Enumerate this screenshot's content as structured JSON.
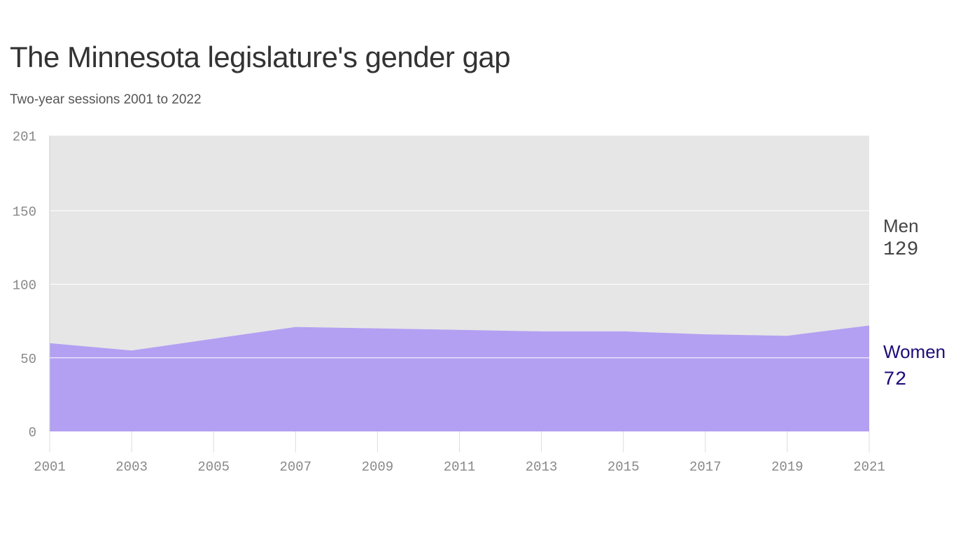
{
  "title": "The Minnesota legislature's gender gap",
  "subtitle": "Two-year sessions 2001 to 2022",
  "chart_data": {
    "type": "area",
    "stacked": true,
    "x": [
      2001,
      2003,
      2005,
      2007,
      2009,
      2011,
      2013,
      2015,
      2017,
      2019,
      2021
    ],
    "x_tick_labels": [
      "2001",
      "2003",
      "2005",
      "2007",
      "2009",
      "2011",
      "2013",
      "2015",
      "2017",
      "2019",
      "2021"
    ],
    "y_tick_labels": [
      "0",
      "50",
      "100",
      "150",
      "201"
    ],
    "y_ticks": [
      0,
      50,
      100,
      150,
      201
    ],
    "ylim": [
      0,
      201
    ],
    "grid": true,
    "series": [
      {
        "name": "Women",
        "values": [
          60,
          55,
          63,
          71,
          70,
          69,
          68,
          68,
          66,
          65,
          72
        ],
        "color": "#b3a0f2",
        "label_color": "#1e0b78",
        "last_label": "72"
      },
      {
        "name": "Men",
        "values": [
          141,
          146,
          138,
          130,
          131,
          132,
          133,
          133,
          135,
          136,
          129
        ],
        "color": "#e6e6e6",
        "label_color": "#444444",
        "last_label": "129"
      }
    ]
  }
}
